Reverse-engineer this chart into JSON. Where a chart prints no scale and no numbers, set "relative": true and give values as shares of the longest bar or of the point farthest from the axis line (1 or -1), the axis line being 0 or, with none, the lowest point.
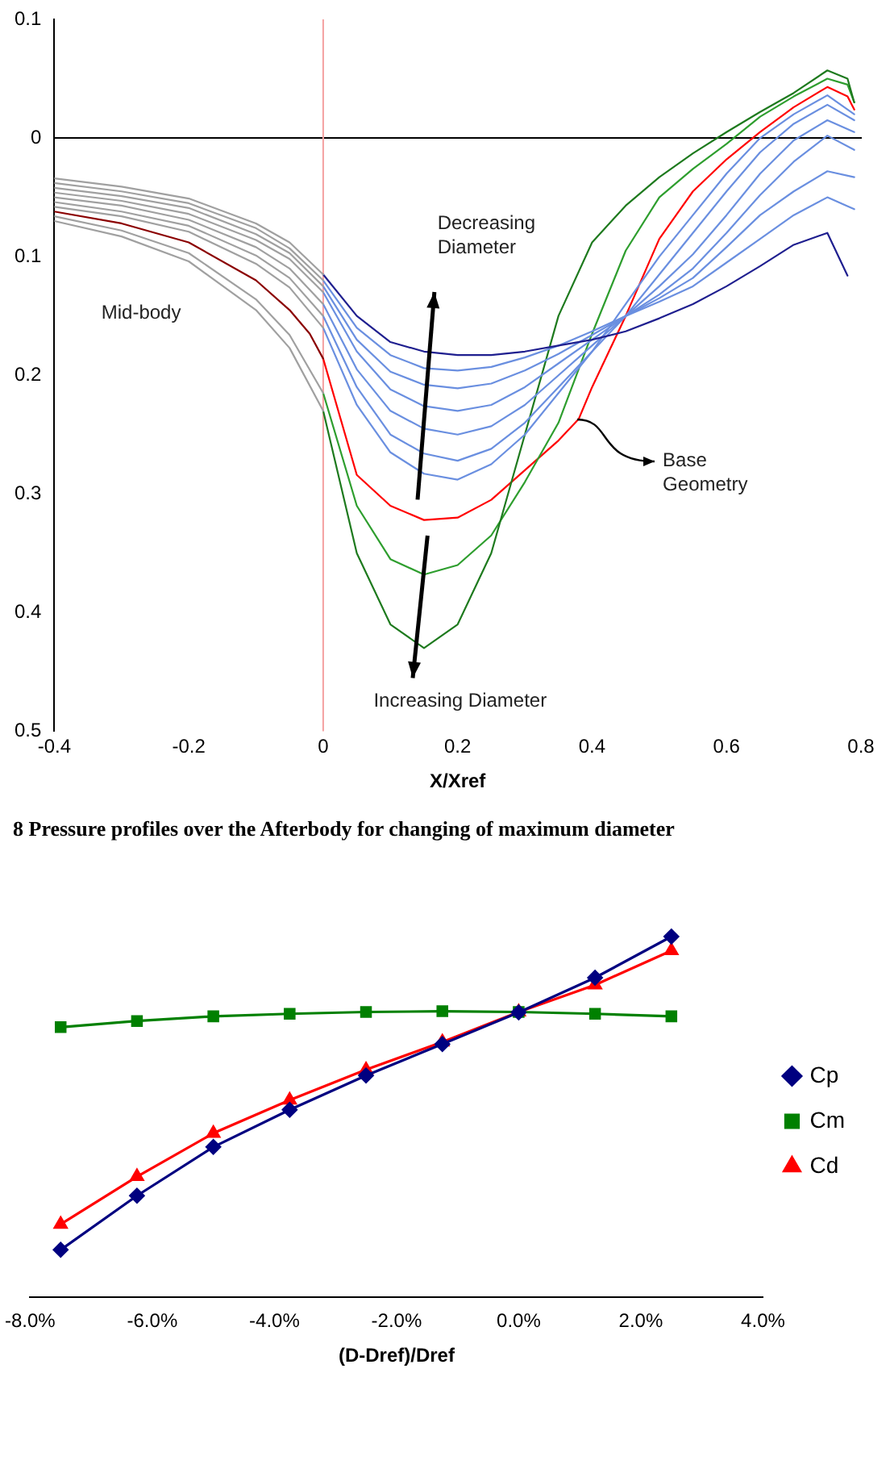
{
  "chart_data": [
    {
      "type": "line",
      "xlabel": "X/Xref",
      "xlim": [
        -0.4,
        0.8
      ],
      "xticks": [
        -0.4,
        -0.2,
        0,
        0.2,
        0.4,
        0.6,
        0.8
      ],
      "ylim": [
        -0.5,
        0.1
      ],
      "yticks": [
        0.1,
        0,
        {
          "value": -0.1,
          "label": "0.1"
        },
        {
          "value": -0.2,
          "label": "0.2"
        },
        {
          "value": -0.3,
          "label": "0.3"
        },
        {
          "value": -0.4,
          "label": "0.4"
        },
        {
          "value": -0.5,
          "label": "0.5"
        }
      ],
      "ref_lines": [
        {
          "axis": "x",
          "value": 0,
          "color": "#f4a0a0"
        }
      ],
      "annotations": [
        "Mid-body",
        "Decreasing\nDiameter",
        "Increasing Diameter",
        {
          "text": "Base\nGeometry",
          "x": 0.378,
          "y": -0.237
        },
        "8 Pressure profiles over the Afterbody for changing of maximum diameter"
      ],
      "series": [
        {
          "color": "#a0a0a0",
          "x": [
            -0.4,
            -0.3,
            -0.2,
            -0.1,
            -0.05,
            0
          ],
          "values": [
            -0.034,
            -0.041,
            -0.051,
            -0.072,
            -0.088,
            -0.115
          ]
        },
        {
          "color": "#a0a0a0",
          "x": [
            -0.4,
            -0.3,
            -0.2,
            -0.1,
            -0.05,
            0
          ],
          "values": [
            -0.038,
            -0.045,
            -0.055,
            -0.076,
            -0.093,
            -0.12
          ]
        },
        {
          "color": "#a0a0a0",
          "x": [
            -0.4,
            -0.3,
            -0.2,
            -0.1,
            -0.05,
            0
          ],
          "values": [
            -0.042,
            -0.049,
            -0.059,
            -0.081,
            -0.097,
            -0.125
          ]
        },
        {
          "color": "#a0a0a0",
          "x": [
            -0.4,
            -0.3,
            -0.2,
            -0.1,
            -0.05,
            0
          ],
          "values": [
            -0.046,
            -0.053,
            -0.064,
            -0.086,
            -0.102,
            -0.13
          ]
        },
        {
          "color": "#a0a0a0",
          "x": [
            -0.4,
            -0.3,
            -0.2,
            -0.1,
            -0.05,
            0
          ],
          "values": [
            -0.05,
            -0.057,
            -0.069,
            -0.092,
            -0.11,
            -0.14
          ]
        },
        {
          "color": "#a0a0a0",
          "x": [
            -0.4,
            -0.3,
            -0.2,
            -0.1,
            -0.05,
            0
          ],
          "values": [
            -0.054,
            -0.062,
            -0.074,
            -0.099,
            -0.118,
            -0.15
          ]
        },
        {
          "color": "#a0a0a0",
          "x": [
            -0.4,
            -0.3,
            -0.2,
            -0.1,
            -0.05,
            0
          ],
          "values": [
            -0.058,
            -0.066,
            -0.079,
            -0.106,
            -0.126,
            -0.16
          ]
        },
        {
          "color": "#a0a0a0",
          "x": [
            -0.4,
            -0.3,
            -0.2,
            -0.1,
            -0.05,
            0
          ],
          "values": [
            -0.066,
            -0.078,
            -0.097,
            -0.136,
            -0.166,
            -0.215
          ]
        },
        {
          "color": "#a0a0a0",
          "x": [
            -0.4,
            -0.3,
            -0.2,
            -0.1,
            -0.05,
            0
          ],
          "values": [
            -0.07,
            -0.083,
            -0.104,
            -0.145,
            -0.177,
            -0.23
          ]
        },
        {
          "color": "#8b0000",
          "x": [
            -0.4,
            -0.3,
            -0.2,
            -0.1,
            -0.05,
            -0.02,
            0
          ],
          "values": [
            -0.062,
            -0.072,
            -0.088,
            -0.12,
            -0.145,
            -0.165,
            -0.186
          ]
        },
        {
          "color": "#1f1f8f",
          "x": [
            0,
            0.05,
            0.1,
            0.15,
            0.2,
            0.25,
            0.3,
            0.35,
            0.4,
            0.45,
            0.5,
            0.55,
            0.6,
            0.65,
            0.7,
            0.75,
            0.78
          ],
          "values": [
            -0.115,
            -0.15,
            -0.172,
            -0.18,
            -0.183,
            -0.183,
            -0.18,
            -0.175,
            -0.17,
            -0.163,
            -0.152,
            -0.14,
            -0.125,
            -0.108,
            -0.09,
            -0.08,
            -0.116
          ]
        },
        {
          "color": "#6a8fe0",
          "x": [
            0,
            0.05,
            0.1,
            0.15,
            0.2,
            0.25,
            0.3,
            0.35,
            0.4,
            0.45,
            0.5,
            0.55,
            0.6,
            0.65,
            0.7,
            0.75,
            0.79
          ],
          "values": [
            -0.12,
            -0.16,
            -0.183,
            -0.194,
            -0.196,
            -0.193,
            -0.185,
            -0.175,
            -0.163,
            -0.15,
            -0.138,
            -0.125,
            -0.105,
            -0.085,
            -0.065,
            -0.05,
            -0.06
          ]
        },
        {
          "color": "#6a8fe0",
          "x": [
            0,
            0.05,
            0.1,
            0.15,
            0.2,
            0.25,
            0.3,
            0.35,
            0.4,
            0.45,
            0.5,
            0.55,
            0.6,
            0.65,
            0.7,
            0.75,
            0.79
          ],
          "values": [
            -0.125,
            -0.17,
            -0.197,
            -0.208,
            -0.211,
            -0.207,
            -0.196,
            -0.182,
            -0.166,
            -0.15,
            -0.135,
            -0.118,
            -0.092,
            -0.065,
            -0.045,
            -0.028,
            -0.033
          ]
        },
        {
          "color": "#6a8fe0",
          "x": [
            0,
            0.05,
            0.1,
            0.15,
            0.2,
            0.25,
            0.3,
            0.35,
            0.4,
            0.45,
            0.5,
            0.55,
            0.6,
            0.65,
            0.7,
            0.75,
            0.79
          ],
          "values": [
            -0.13,
            -0.18,
            -0.212,
            -0.226,
            -0.23,
            -0.225,
            -0.21,
            -0.19,
            -0.17,
            -0.15,
            -0.132,
            -0.11,
            -0.08,
            -0.048,
            -0.02,
            0.002,
            -0.01
          ]
        },
        {
          "color": "#6a8fe0",
          "x": [
            0,
            0.05,
            0.1,
            0.15,
            0.2,
            0.25,
            0.3,
            0.35,
            0.4,
            0.45,
            0.5,
            0.55,
            0.6,
            0.65,
            0.7,
            0.75,
            0.79
          ],
          "values": [
            -0.14,
            -0.195,
            -0.23,
            -0.245,
            -0.25,
            -0.243,
            -0.225,
            -0.2,
            -0.175,
            -0.15,
            -0.125,
            -0.098,
            -0.065,
            -0.03,
            -0.002,
            0.015,
            0.005
          ]
        },
        {
          "color": "#6a8fe0",
          "x": [
            0,
            0.05,
            0.1,
            0.15,
            0.2,
            0.25,
            0.3,
            0.35,
            0.4,
            0.45,
            0.5,
            0.55,
            0.6,
            0.65,
            0.7,
            0.75,
            0.79
          ],
          "values": [
            -0.15,
            -0.21,
            -0.25,
            -0.266,
            -0.272,
            -0.262,
            -0.24,
            -0.21,
            -0.18,
            -0.15,
            -0.115,
            -0.08,
            -0.045,
            -0.012,
            0.012,
            0.028,
            0.015
          ]
        },
        {
          "color": "#6a8fe0",
          "x": [
            0,
            0.05,
            0.1,
            0.15,
            0.2,
            0.25,
            0.3,
            0.35,
            0.4,
            0.45,
            0.5,
            0.55,
            0.6,
            0.65,
            0.7,
            0.75,
            0.79
          ],
          "values": [
            -0.16,
            -0.225,
            -0.265,
            -0.283,
            -0.288,
            -0.275,
            -0.25,
            -0.215,
            -0.18,
            -0.14,
            -0.1,
            -0.065,
            -0.03,
            0,
            0.02,
            0.036,
            0.02
          ]
        },
        {
          "color": "#1e7a1e",
          "x": [
            0,
            0.05,
            0.1,
            0.15,
            0.2,
            0.25,
            0.3,
            0.35,
            0.4,
            0.45,
            0.5,
            0.55,
            0.6,
            0.65,
            0.7,
            0.75,
            0.78,
            0.79
          ],
          "values": [
            -0.23,
            -0.35,
            -0.41,
            -0.43,
            -0.41,
            -0.35,
            -0.25,
            -0.15,
            -0.088,
            -0.057,
            -0.033,
            -0.013,
            0.005,
            0.022,
            0.038,
            0.057,
            0.05,
            0.03
          ]
        },
        {
          "color": "#2e9e2e",
          "x": [
            0,
            0.05,
            0.1,
            0.15,
            0.2,
            0.25,
            0.3,
            0.35,
            0.4,
            0.45,
            0.5,
            0.55,
            0.6,
            0.65,
            0.7,
            0.75,
            0.78,
            0.79
          ],
          "values": [
            -0.215,
            -0.31,
            -0.355,
            -0.368,
            -0.36,
            -0.335,
            -0.29,
            -0.24,
            -0.165,
            -0.095,
            -0.05,
            -0.026,
            -0.005,
            0.018,
            0.035,
            0.05,
            0.045,
            0.03
          ]
        },
        {
          "color": "#ff0000",
          "x": [
            0,
            0.05,
            0.1,
            0.15,
            0.2,
            0.25,
            0.3,
            0.35,
            0.38,
            0.4,
            0.45,
            0.5,
            0.55,
            0.6,
            0.65,
            0.7,
            0.75,
            0.78,
            0.79
          ],
          "values": [
            -0.186,
            -0.284,
            -0.31,
            -0.322,
            -0.32,
            -0.305,
            -0.28,
            -0.255,
            -0.237,
            -0.21,
            -0.15,
            -0.085,
            -0.045,
            -0.018,
            0.005,
            0.026,
            0.043,
            0.035,
            0.024
          ]
        }
      ]
    },
    {
      "type": "line",
      "xlabel": "(D-Dref)/Dref",
      "relative": true,
      "legend": "right",
      "x": [
        -7.5,
        -6.25,
        -5,
        -3.75,
        -2.5,
        -1.25,
        0,
        1.25,
        2.5
      ],
      "xlim": [
        -8,
        4
      ],
      "xticks": [
        {
          "value": -8,
          "label": "-8.0%"
        },
        {
          "value": -6,
          "label": "-6.0%"
        },
        {
          "value": -4,
          "label": "-4.0%"
        },
        {
          "value": -2,
          "label": "-2.0%"
        },
        {
          "value": 0,
          "label": "0.0%"
        },
        {
          "value": 2,
          "label": "2.0%"
        },
        {
          "value": 4,
          "label": "4.0%"
        }
      ],
      "series": [
        {
          "name": "Cp",
          "color": "#000080",
          "marker": "diamond",
          "values": [
            0.132,
            0.282,
            0.417,
            0.52,
            0.615,
            0.702,
            0.79,
            0.886,
            1
          ]
        },
        {
          "name": "Cm",
          "color": "#008000",
          "marker": "square",
          "values": [
            0.749,
            0.766,
            0.779,
            0.786,
            0.791,
            0.793,
            0.791,
            0.786,
            0.779
          ]
        },
        {
          "name": "Cd",
          "color": "#ff0000",
          "marker": "triangle",
          "values": [
            0.203,
            0.335,
            0.455,
            0.547,
            0.631,
            0.708,
            0.791,
            0.866,
            0.961
          ]
        }
      ]
    }
  ]
}
